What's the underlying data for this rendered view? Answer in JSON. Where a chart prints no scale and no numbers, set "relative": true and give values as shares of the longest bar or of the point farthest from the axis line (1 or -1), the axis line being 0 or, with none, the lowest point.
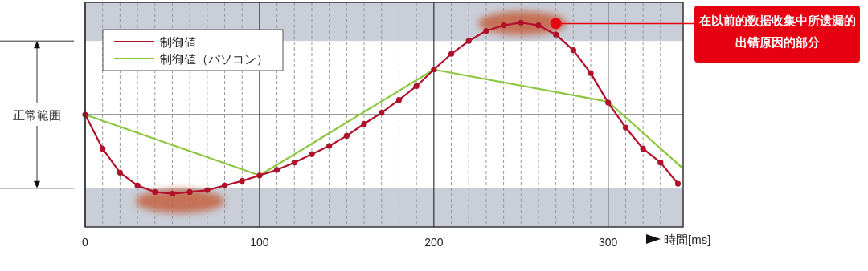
{
  "chart_data": {
    "type": "line",
    "relative": true,
    "xlabel": "時間[ms]",
    "xlim": [
      0,
      343
    ],
    "xticks": [
      0,
      {
        "value": 10,
        "label": null
      },
      {
        "value": 20,
        "label": null
      },
      {
        "value": 30,
        "label": null
      },
      {
        "value": 40,
        "label": null
      },
      {
        "value": 50,
        "label": null
      },
      {
        "value": 60,
        "label": null
      },
      {
        "value": 70,
        "label": null
      },
      {
        "value": 80,
        "label": null
      },
      {
        "value": 90,
        "label": null
      },
      100,
      {
        "value": 110,
        "label": null
      },
      {
        "value": 120,
        "label": null
      },
      {
        "value": 130,
        "label": null
      },
      {
        "value": 140,
        "label": null
      },
      {
        "value": 150,
        "label": null
      },
      {
        "value": 160,
        "label": null
      },
      {
        "value": 170,
        "label": null
      },
      {
        "value": 180,
        "label": null
      },
      {
        "value": 190,
        "label": null
      },
      200,
      {
        "value": 210,
        "label": null
      },
      {
        "value": 220,
        "label": null
      },
      {
        "value": 230,
        "label": null
      },
      {
        "value": 240,
        "label": null
      },
      {
        "value": 250,
        "label": null
      },
      {
        "value": 260,
        "label": null
      },
      {
        "value": 270,
        "label": null
      },
      {
        "value": 280,
        "label": null
      },
      {
        "value": 290,
        "label": null
      },
      300,
      {
        "value": 310,
        "label": null
      },
      {
        "value": 320,
        "label": null
      },
      {
        "value": 330,
        "label": null
      },
      {
        "value": 340,
        "label": null
      }
    ],
    "grid": "x",
    "legend": "top left",
    "series": [
      {
        "name": "制御値",
        "color": "#b0102a",
        "marker": "circle",
        "x": [
          0,
          10,
          20,
          30,
          40,
          50,
          60,
          70,
          80,
          90,
          100,
          110,
          120,
          130,
          140,
          150,
          160,
          170,
          180,
          190,
          200,
          210,
          220,
          230,
          240,
          250,
          260,
          270,
          280,
          290,
          300,
          310,
          320,
          330,
          340
        ],
        "values": [
          0,
          -0.37,
          -0.63,
          -0.77,
          -0.84,
          -0.86,
          -0.84,
          -0.82,
          -0.77,
          -0.72,
          -0.66,
          -0.6,
          -0.52,
          -0.43,
          -0.34,
          -0.23,
          -0.1,
          0.02,
          0.16,
          0.31,
          0.49,
          0.66,
          0.8,
          0.91,
          0.97,
          1,
          0.97,
          0.87,
          0.7,
          0.45,
          0.13,
          -0.14,
          -0.37,
          -0.52,
          -0.75
        ]
      },
      {
        "name": "制御値（パソコン）",
        "color": "#8cc63f",
        "marker": "none",
        "x": [
          0,
          100,
          200,
          300,
          342
        ],
        "values": [
          0,
          -0.66,
          0.49,
          0.14,
          -0.57
        ]
      }
    ],
    "bands": [
      {
        "axis": "y",
        "from": 0.8,
        "to": 1.22,
        "color": "#c9ced8"
      },
      {
        "axis": "y",
        "from": -1.22,
        "to": -0.8,
        "color": "#c9ced8"
      }
    ],
    "annotations": [
      "正常範囲",
      {
        "text": "在以前的数据收集中所遗漏的出错原因的部分",
        "x": 270,
        "y": 0.99
      }
    ]
  }
}
